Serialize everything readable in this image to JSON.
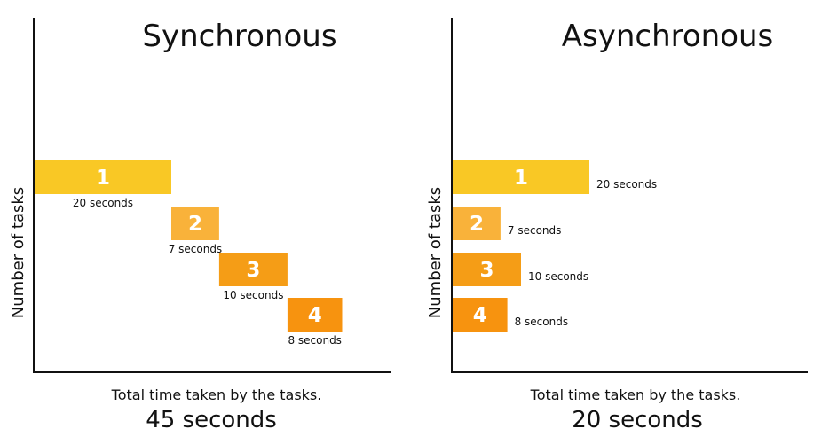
{
  "chart_data": [
    {
      "type": "bar",
      "title": "Synchronous",
      "ylabel": "Number of tasks",
      "xlabel": "Total time taken by the tasks.",
      "total": "45 seconds",
      "tasks": [
        {
          "label": "1",
          "duration": 20,
          "duration_text": "20 seconds",
          "color": "#f9c825"
        },
        {
          "label": "2",
          "duration": 7,
          "duration_text": "7 seconds",
          "color": "#f9b23a"
        },
        {
          "label": "3",
          "duration": 10,
          "duration_text": "10 seconds",
          "color": "#f59d16"
        },
        {
          "label": "4",
          "duration": 8,
          "duration_text": "8 seconds",
          "color": "#f7930f"
        }
      ]
    },
    {
      "type": "bar",
      "title": "Asynchronous",
      "ylabel": "Number of tasks",
      "xlabel": "Total time taken by the tasks.",
      "total": "20 seconds",
      "tasks": [
        {
          "label": "1",
          "duration": 20,
          "duration_text": "20 seconds",
          "color": "#f9c825"
        },
        {
          "label": "2",
          "duration": 7,
          "duration_text": "7 seconds",
          "color": "#f9b23a"
        },
        {
          "label": "3",
          "duration": 10,
          "duration_text": "10 seconds",
          "color": "#f59d16"
        },
        {
          "label": "4",
          "duration": 8,
          "duration_text": "8 seconds",
          "color": "#f7930f"
        }
      ]
    }
  ]
}
